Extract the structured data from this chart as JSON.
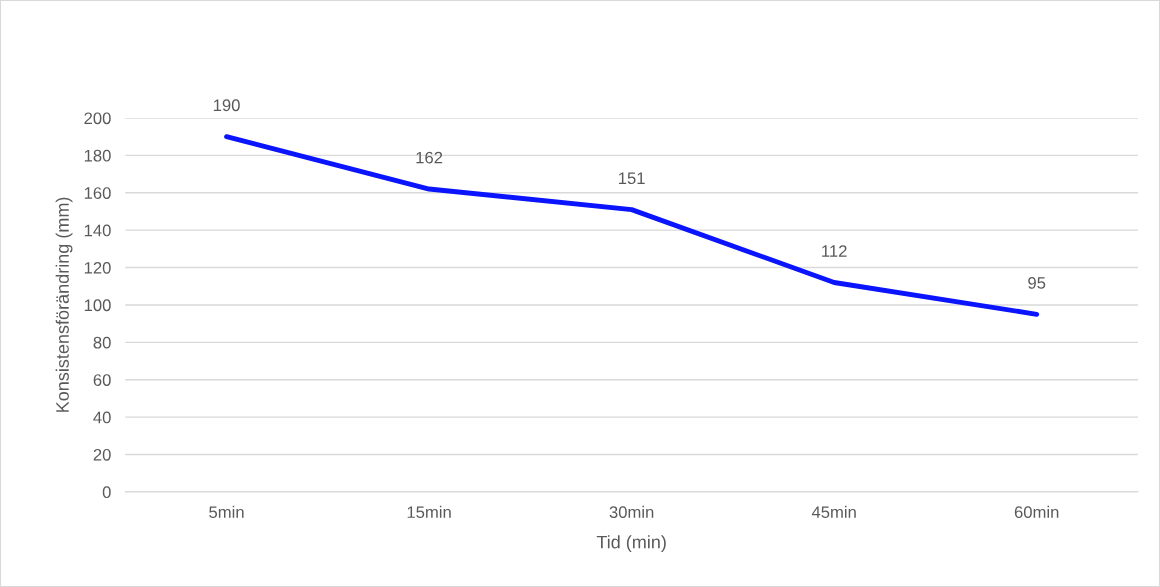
{
  "chart_data": {
    "type": "line",
    "xlabel": "Tid (min)",
    "ylabel": "Konsistensförändring (mm)",
    "categories": [
      "5min",
      "15min",
      "30min",
      "45min",
      "60min"
    ],
    "series": [
      {
        "color": "#0a14ff",
        "values": [
          190,
          162,
          151,
          112,
          95
        ]
      }
    ],
    "ylim": [
      0,
      200
    ],
    "yticks": [
      0,
      20,
      40,
      60,
      80,
      100,
      120,
      140,
      160,
      180,
      200
    ],
    "grid": "y",
    "data_labels": true,
    "marker": "none",
    "line_style": "solid"
  }
}
